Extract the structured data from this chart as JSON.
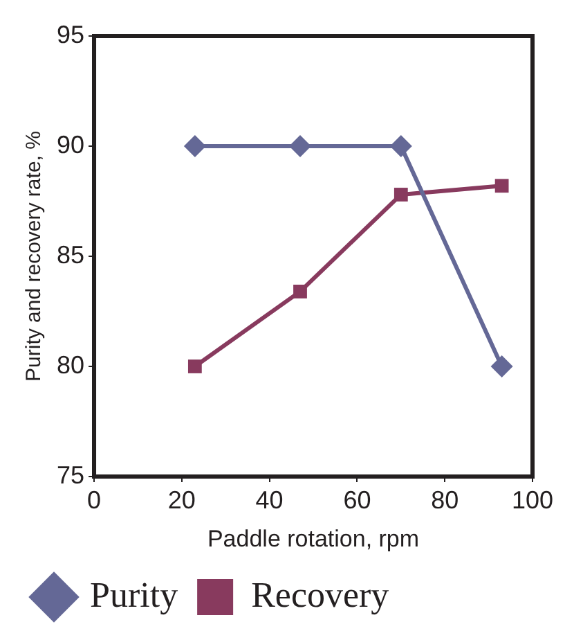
{
  "chart_data": {
    "type": "line",
    "xlabel": "Paddle rotation, rpm",
    "ylabel": "Purity and recovery rate, %",
    "xlim": [
      0,
      100
    ],
    "xticks": [
      0,
      20,
      40,
      60,
      80,
      100
    ],
    "ylim": [
      75,
      95
    ],
    "yticks": [
      75,
      80,
      85,
      90,
      95
    ],
    "grid": false,
    "legend": "bottom",
    "series": [
      {
        "name": "Purity",
        "color": "#646896",
        "marker": "diamond",
        "x": [
          23,
          47,
          70,
          93
        ],
        "values": [
          90,
          90,
          90,
          80
        ]
      },
      {
        "name": "Recovery",
        "color": "#883a5e",
        "marker": "square",
        "x": [
          23,
          47,
          70,
          93
        ],
        "values": [
          80,
          83.4,
          87.8,
          88.2
        ]
      }
    ]
  }
}
